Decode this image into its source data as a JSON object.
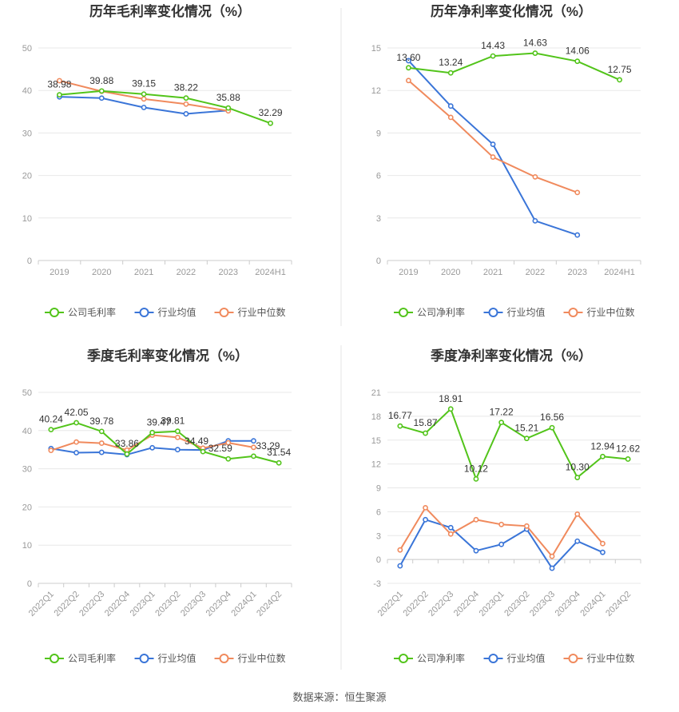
{
  "colors": {
    "company": "#52c41a",
    "industry_avg": "#3a75d8",
    "industry_median": "#f08a5d",
    "axis": "#999999",
    "grid": "#e8e8e8",
    "title": "#333333",
    "divider": "#e6e6e6"
  },
  "footer": {
    "source": "数据来源：恒生聚源"
  },
  "chart_data": [
    {
      "type": "line",
      "title": "历年毛利率变化情况（%）",
      "categories": [
        "2019",
        "2020",
        "2021",
        "2022",
        "2023",
        "2024H1"
      ],
      "ylim": [
        0,
        50
      ],
      "yticks": [
        0,
        10,
        20,
        30,
        40,
        50
      ],
      "grid": true,
      "legend": "bottom",
      "series": [
        {
          "name": "公司毛利率",
          "color_key": "company",
          "values": [
            38.98,
            39.88,
            39.15,
            38.22,
            35.88,
            32.29
          ],
          "labels": [
            "38.98",
            "39.88",
            "39.15",
            "38.22",
            "35.88",
            "32.29"
          ]
        },
        {
          "name": "行业均值",
          "color_key": "industry_avg",
          "values": [
            38.5,
            38.2,
            36.0,
            34.5,
            35.3,
            null
          ]
        },
        {
          "name": "行业中位数",
          "color_key": "industry_median",
          "values": [
            42.3,
            39.8,
            38.0,
            36.8,
            35.2,
            null
          ]
        }
      ]
    },
    {
      "type": "line",
      "title": "历年净利率变化情况（%）",
      "categories": [
        "2019",
        "2020",
        "2021",
        "2022",
        "2023",
        "2024H1"
      ],
      "ylim": [
        0,
        15
      ],
      "yticks": [
        0,
        3,
        6,
        9,
        12,
        15
      ],
      "grid": true,
      "legend": "bottom",
      "series": [
        {
          "name": "公司净利率",
          "color_key": "company",
          "values": [
            13.6,
            13.24,
            14.43,
            14.63,
            14.06,
            12.75
          ],
          "labels": [
            "13.60",
            "13.24",
            "14.43",
            "14.63",
            "14.06",
            "12.75"
          ]
        },
        {
          "name": "行业均值",
          "color_key": "industry_avg",
          "values": [
            14.1,
            10.9,
            8.2,
            2.8,
            1.8,
            null
          ]
        },
        {
          "name": "行业中位数",
          "color_key": "industry_median",
          "values": [
            12.7,
            10.1,
            7.3,
            5.9,
            4.8,
            null
          ]
        }
      ]
    },
    {
      "type": "line",
      "title": "季度毛利率变化情况（%）",
      "categories": [
        "2022Q1",
        "2022Q2",
        "2022Q3",
        "2022Q4",
        "2023Q1",
        "2023Q2",
        "2023Q3",
        "2023Q4",
        "2024Q1",
        "2024Q2"
      ],
      "ylim": [
        0,
        50
      ],
      "yticks": [
        0,
        10,
        20,
        30,
        40,
        50
      ],
      "grid": true,
      "legend": "bottom",
      "series": [
        {
          "name": "公司毛利率",
          "color_key": "company",
          "values": [
            40.24,
            42.05,
            39.78,
            33.86,
            39.47,
            39.81,
            34.49,
            32.59,
            33.29,
            31.54
          ],
          "labels": [
            "40.24",
            "42.05",
            "39.78",
            "33.86",
            "39.47",
            "39.81",
            "34.49",
            "32.59",
            "33.29",
            "31.54"
          ]
        },
        {
          "name": "行业均值",
          "color_key": "industry_avg",
          "values": [
            35.3,
            34.2,
            34.3,
            33.7,
            35.5,
            35.0,
            34.9,
            37.3,
            37.3,
            null
          ]
        },
        {
          "name": "行业中位数",
          "color_key": "industry_median",
          "values": [
            34.8,
            37.0,
            36.7,
            34.9,
            38.8,
            38.2,
            35.4,
            36.8,
            35.6,
            null
          ]
        }
      ]
    },
    {
      "type": "line",
      "title": "季度净利率变化情况（%）",
      "categories": [
        "2022Q1",
        "2022Q2",
        "2022Q3",
        "2022Q4",
        "2023Q1",
        "2023Q2",
        "2023Q3",
        "2023Q4",
        "2024Q1",
        "2024Q2"
      ],
      "ylim": [
        -3,
        21
      ],
      "yticks": [
        -3,
        0,
        3,
        6,
        9,
        12,
        15,
        18,
        21
      ],
      "grid": true,
      "legend": "bottom",
      "series": [
        {
          "name": "公司净利率",
          "color_key": "company",
          "values": [
            16.77,
            15.87,
            18.91,
            10.12,
            17.22,
            15.21,
            16.56,
            10.3,
            12.94,
            12.62
          ],
          "labels": [
            "16.77",
            "15.87",
            "18.91",
            "10.12",
            "17.22",
            "15.21",
            "16.56",
            "10.30",
            "12.94",
            "12.62"
          ]
        },
        {
          "name": "行业均值",
          "color_key": "industry_avg",
          "values": [
            -0.8,
            5.0,
            4.0,
            1.1,
            1.9,
            3.8,
            -1.1,
            2.3,
            0.9,
            null
          ]
        },
        {
          "name": "行业中位数",
          "color_key": "industry_median",
          "values": [
            1.2,
            6.5,
            3.2,
            5.0,
            4.4,
            4.2,
            0.4,
            5.7,
            2.0,
            null
          ]
        }
      ]
    }
  ]
}
